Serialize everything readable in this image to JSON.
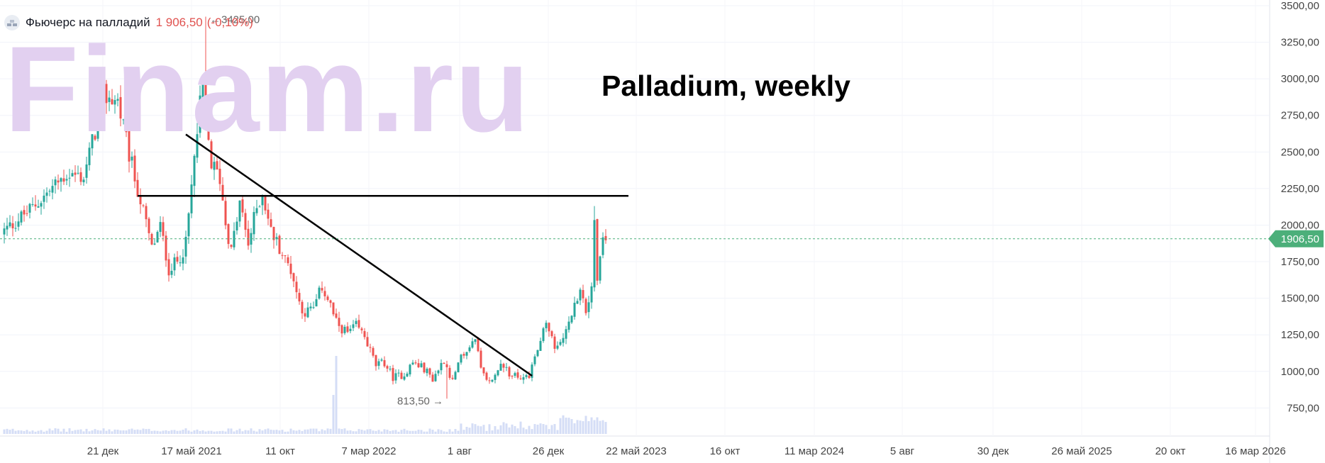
{
  "header": {
    "instrument": "Фьючерс на палладий",
    "last_price": "1 906,50",
    "change": "(-0,10%)",
    "icon": "gold-bars-icon"
  },
  "watermark": "Finam.ru",
  "chart_data": {
    "type": "candlestick",
    "title": "Palladium, weekly",
    "current_price_label": "1906,50",
    "current_price": 1906.5,
    "high_annotation": "3425,00",
    "low_annotation": "813,50",
    "ylim": [
      650,
      3500
    ],
    "y_ticks": [
      3500,
      3250,
      3000,
      2750,
      2500,
      2250,
      2000,
      1750,
      1500,
      1250,
      1000,
      750
    ],
    "y_tick_labels": [
      "3500,00",
      "3250,00",
      "3000,00",
      "2750,00",
      "2500,00",
      "2250,00",
      "2000,00",
      "1750,00",
      "1500,00",
      "1250,00",
      "1000,00",
      "750,00"
    ],
    "x_tick_labels": [
      "21 дек",
      "17 май 2021",
      "11 окт",
      "7 мар 2022",
      "1 авг",
      "26 дек",
      "22 май 2023",
      "16 окт",
      "11 мар 2024",
      "5 авг",
      "30 дек",
      "26 май 2025",
      "20 окт",
      "16 мар 2026"
    ],
    "price_path": [
      [
        0,
        1960
      ],
      [
        10,
        2120
      ],
      [
        22,
        2350
      ],
      [
        28,
        2330
      ],
      [
        35,
        2880
      ],
      [
        40,
        2850
      ],
      [
        44,
        2480
      ],
      [
        49,
        2090
      ],
      [
        52,
        1840
      ],
      [
        55,
        1990
      ],
      [
        58,
        1700
      ],
      [
        61,
        1750
      ],
      [
        64,
        1870
      ],
      [
        67,
        2450
      ],
      [
        70,
        2990
      ],
      [
        71,
        2720
      ],
      [
        73,
        2420
      ],
      [
        76,
        2320
      ],
      [
        78,
        2020
      ],
      [
        80,
        1820
      ],
      [
        83,
        2150
      ],
      [
        86,
        1870
      ],
      [
        89,
        2120
      ],
      [
        91,
        2220
      ],
      [
        94,
        1960
      ],
      [
        97,
        1850
      ],
      [
        99,
        1760
      ],
      [
        101,
        1700
      ],
      [
        104,
        1470
      ],
      [
        106,
        1400
      ],
      [
        109,
        1430
      ],
      [
        112,
        1580
      ],
      [
        115,
        1450
      ],
      [
        117,
        1330
      ],
      [
        121,
        1260
      ],
      [
        124,
        1310
      ],
      [
        127,
        1240
      ],
      [
        131,
        1040
      ],
      [
        134,
        1060
      ],
      [
        137,
        960
      ],
      [
        141,
        980
      ],
      [
        144,
        1060
      ],
      [
        148,
        1020
      ],
      [
        151,
        950
      ],
      [
        155,
        1080
      ],
      [
        158,
        930
      ],
      [
        161,
        1090
      ],
      [
        164,
        1160
      ],
      [
        166,
        1240
      ],
      [
        168,
        1000
      ],
      [
        171,
        920
      ],
      [
        175,
        1030
      ],
      [
        178,
        990
      ],
      [
        182,
        940
      ],
      [
        185,
        980
      ],
      [
        188,
        1150
      ],
      [
        191,
        1330
      ],
      [
        194,
        1150
      ],
      [
        197,
        1240
      ],
      [
        200,
        1400
      ],
      [
        203,
        1520
      ],
      [
        205,
        1420
      ],
      [
        207,
        1560
      ],
      [
        208,
        2050
      ],
      [
        209,
        1600
      ],
      [
        211,
        1900
      ],
      [
        212,
        1907
      ]
    ],
    "volume_spike_index": 117,
    "lines": [
      {
        "kind": "horizontal-resistance",
        "y": 2200,
        "from_index": 47,
        "to_index": 220
      },
      {
        "kind": "descending-trendline",
        "from": [
          64,
          2620
        ],
        "to": [
          186,
          970
        ]
      }
    ],
    "colors": {
      "up": "#26a69a",
      "down": "#ef5350",
      "volume": "#d4ddf6",
      "current_price_badge": "#4caf7a",
      "trendlines": "#000000",
      "watermark": "#e2d0f0"
    },
    "grid": true
  }
}
